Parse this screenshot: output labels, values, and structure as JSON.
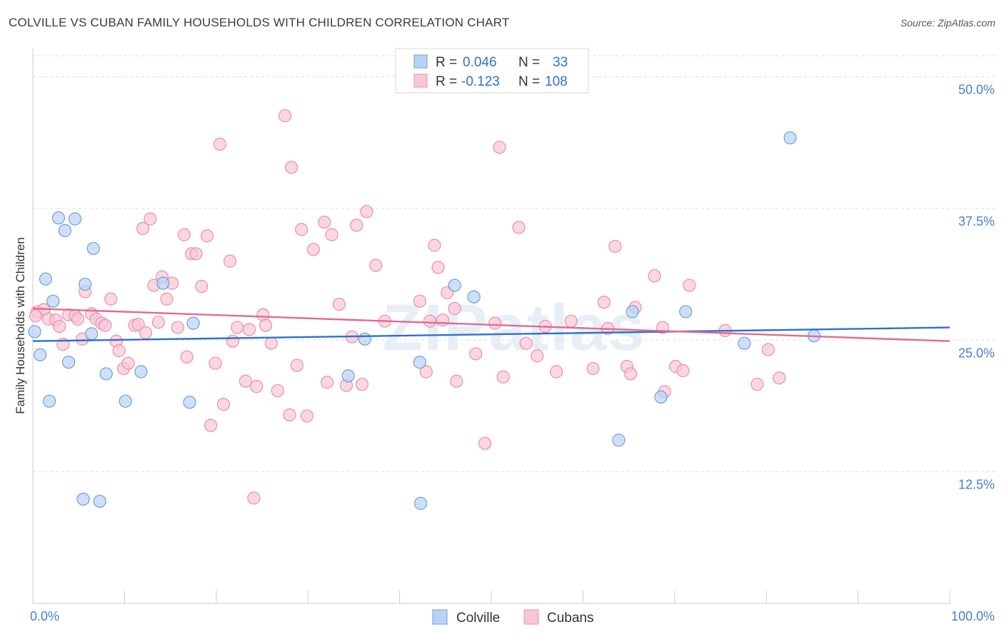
{
  "title": "COLVILLE VS CUBAN FAMILY HOUSEHOLDS WITH CHILDREN CORRELATION CHART",
  "source": "Source: ZipAtlas.com",
  "watermark": "ZIPatlas",
  "colors": {
    "blue_fill": "#b9d3f5",
    "blue_stroke": "#6d9fe0",
    "blue_line": "#2f6fd0",
    "pink_fill": "#f9c6d6",
    "pink_stroke": "#ea8fac",
    "pink_line": "#e06b93",
    "tick_label": "#4a7fd0",
    "grid": "#dddddd"
  },
  "legend_top": [
    {
      "r_label": "R =",
      "r_value": "0.046",
      "n_label": "N =",
      "n_value": "33",
      "series": "Colville"
    },
    {
      "r_label": "R =",
      "r_value": "-0.123",
      "n_label": "N =",
      "n_value": "108",
      "series": "Cubans"
    }
  ],
  "chart_data": {
    "type": "scatter",
    "title": "COLVILLE VS CUBAN FAMILY HOUSEHOLDS WITH CHILDREN CORRELATION CHART",
    "xlabel": "",
    "ylabel": "Family Households with Children",
    "xlim": [
      0,
      100
    ],
    "ylim": [
      0,
      52
    ],
    "x_tick_labels": [
      "0.0%",
      "100.0%"
    ],
    "y_ticks": [
      12.5,
      25.0,
      37.5,
      50.0
    ],
    "y_tick_labels": [
      "12.5%",
      "25.0%",
      "37.5%",
      "50.0%"
    ],
    "grid": "horizontal dashed",
    "legend_position": "bottom-center",
    "series": [
      {
        "name": "Colville",
        "color": "#6d9fe0",
        "trend": {
          "x": [
            0,
            100
          ],
          "y": [
            24.9,
            26.2
          ]
        },
        "points": [
          [
            0.2,
            25.8
          ],
          [
            0.8,
            23.6
          ],
          [
            1.4,
            30.8
          ],
          [
            1.8,
            19.2
          ],
          [
            2.2,
            28.7
          ],
          [
            2.8,
            36.6
          ],
          [
            3.5,
            35.4
          ],
          [
            3.9,
            22.9
          ],
          [
            4.6,
            36.5
          ],
          [
            5.5,
            9.9
          ],
          [
            5.7,
            30.3
          ],
          [
            6.4,
            25.6
          ],
          [
            6.6,
            33.7
          ],
          [
            7.3,
            9.7
          ],
          [
            8.0,
            21.8
          ],
          [
            10.1,
            19.2
          ],
          [
            11.8,
            22.0
          ],
          [
            14.2,
            30.4
          ],
          [
            17.1,
            19.1
          ],
          [
            17.5,
            26.6
          ],
          [
            34.4,
            21.6
          ],
          [
            36.2,
            25.1
          ],
          [
            42.2,
            22.9
          ],
          [
            42.3,
            9.5
          ],
          [
            46.0,
            30.2
          ],
          [
            48.1,
            29.1
          ],
          [
            63.9,
            15.5
          ],
          [
            65.4,
            27.7
          ],
          [
            68.5,
            19.6
          ],
          [
            71.2,
            27.7
          ],
          [
            77.6,
            24.7
          ],
          [
            82.6,
            44.2
          ],
          [
            85.2,
            25.4
          ]
        ]
      },
      {
        "name": "Cubans",
        "color": "#ea8fac",
        "trend": {
          "x": [
            0,
            100
          ],
          "y": [
            28.0,
            24.9
          ]
        },
        "points": [
          [
            0.5,
            27.7
          ],
          [
            1.2,
            27.9
          ],
          [
            1.7,
            27.0
          ],
          [
            2.5,
            26.9
          ],
          [
            2.9,
            26.3
          ],
          [
            3.3,
            24.6
          ],
          [
            3.9,
            27.4
          ],
          [
            4.6,
            27.3
          ],
          [
            4.9,
            27.0
          ],
          [
            5.4,
            25.1
          ],
          [
            5.7,
            29.6
          ],
          [
            6.4,
            27.5
          ],
          [
            6.9,
            27.0
          ],
          [
            7.5,
            26.6
          ],
          [
            7.9,
            26.4
          ],
          [
            8.5,
            28.9
          ],
          [
            9.1,
            24.9
          ],
          [
            9.4,
            24.0
          ],
          [
            9.9,
            22.3
          ],
          [
            10.4,
            22.8
          ],
          [
            11.1,
            26.4
          ],
          [
            11.5,
            26.5
          ],
          [
            12.0,
            35.6
          ],
          [
            12.3,
            25.7
          ],
          [
            12.8,
            36.5
          ],
          [
            13.2,
            30.2
          ],
          [
            13.7,
            26.7
          ],
          [
            14.1,
            31.0
          ],
          [
            14.6,
            28.9
          ],
          [
            15.2,
            30.4
          ],
          [
            15.8,
            26.2
          ],
          [
            16.5,
            35.0
          ],
          [
            16.8,
            23.4
          ],
          [
            17.3,
            33.2
          ],
          [
            17.8,
            33.2
          ],
          [
            18.4,
            30.1
          ],
          [
            19.0,
            34.9
          ],
          [
            19.4,
            16.9
          ],
          [
            19.9,
            22.8
          ],
          [
            20.4,
            43.6
          ],
          [
            20.8,
            18.9
          ],
          [
            21.5,
            32.5
          ],
          [
            21.8,
            24.9
          ],
          [
            22.3,
            26.2
          ],
          [
            23.2,
            21.1
          ],
          [
            23.6,
            26.0
          ],
          [
            24.1,
            10.0
          ],
          [
            24.4,
            20.6
          ],
          [
            25.1,
            27.4
          ],
          [
            25.4,
            26.4
          ],
          [
            26.0,
            24.7
          ],
          [
            26.7,
            20.2
          ],
          [
            27.5,
            46.3
          ],
          [
            28.0,
            17.9
          ],
          [
            28.2,
            41.4
          ],
          [
            28.8,
            22.6
          ],
          [
            29.3,
            35.5
          ],
          [
            29.9,
            17.8
          ],
          [
            30.6,
            33.6
          ],
          [
            31.8,
            36.2
          ],
          [
            32.1,
            21.0
          ],
          [
            32.6,
            35.0
          ],
          [
            33.4,
            28.4
          ],
          [
            34.2,
            20.7
          ],
          [
            34.8,
            25.3
          ],
          [
            35.3,
            35.9
          ],
          [
            35.9,
            20.8
          ],
          [
            36.4,
            37.2
          ],
          [
            37.4,
            32.1
          ],
          [
            38.4,
            26.8
          ],
          [
            42.2,
            28.7
          ],
          [
            42.9,
            22.0
          ],
          [
            43.3,
            26.8
          ],
          [
            43.8,
            34.0
          ],
          [
            44.2,
            31.9
          ],
          [
            44.7,
            26.9
          ],
          [
            45.2,
            29.5
          ],
          [
            46.0,
            28.0
          ],
          [
            46.2,
            21.1
          ],
          [
            48.3,
            23.7
          ],
          [
            49.3,
            15.2
          ],
          [
            50.4,
            26.6
          ],
          [
            50.9,
            43.3
          ],
          [
            51.3,
            21.5
          ],
          [
            53.0,
            35.7
          ],
          [
            53.8,
            24.7
          ],
          [
            55.0,
            23.5
          ],
          [
            55.9,
            26.3
          ],
          [
            57.1,
            22.0
          ],
          [
            58.7,
            26.8
          ],
          [
            61.1,
            22.3
          ],
          [
            62.3,
            28.6
          ],
          [
            62.7,
            26.1
          ],
          [
            63.5,
            33.9
          ],
          [
            64.8,
            22.5
          ],
          [
            65.2,
            21.8
          ],
          [
            65.7,
            28.1
          ],
          [
            67.8,
            31.1
          ],
          [
            68.7,
            26.2
          ],
          [
            68.9,
            20.1
          ],
          [
            70.1,
            22.5
          ],
          [
            70.9,
            22.1
          ],
          [
            71.6,
            30.2
          ],
          [
            75.5,
            25.9
          ],
          [
            79.0,
            20.8
          ],
          [
            80.2,
            24.1
          ],
          [
            81.4,
            21.4
          ],
          [
            0.3,
            27.3
          ]
        ]
      }
    ]
  }
}
